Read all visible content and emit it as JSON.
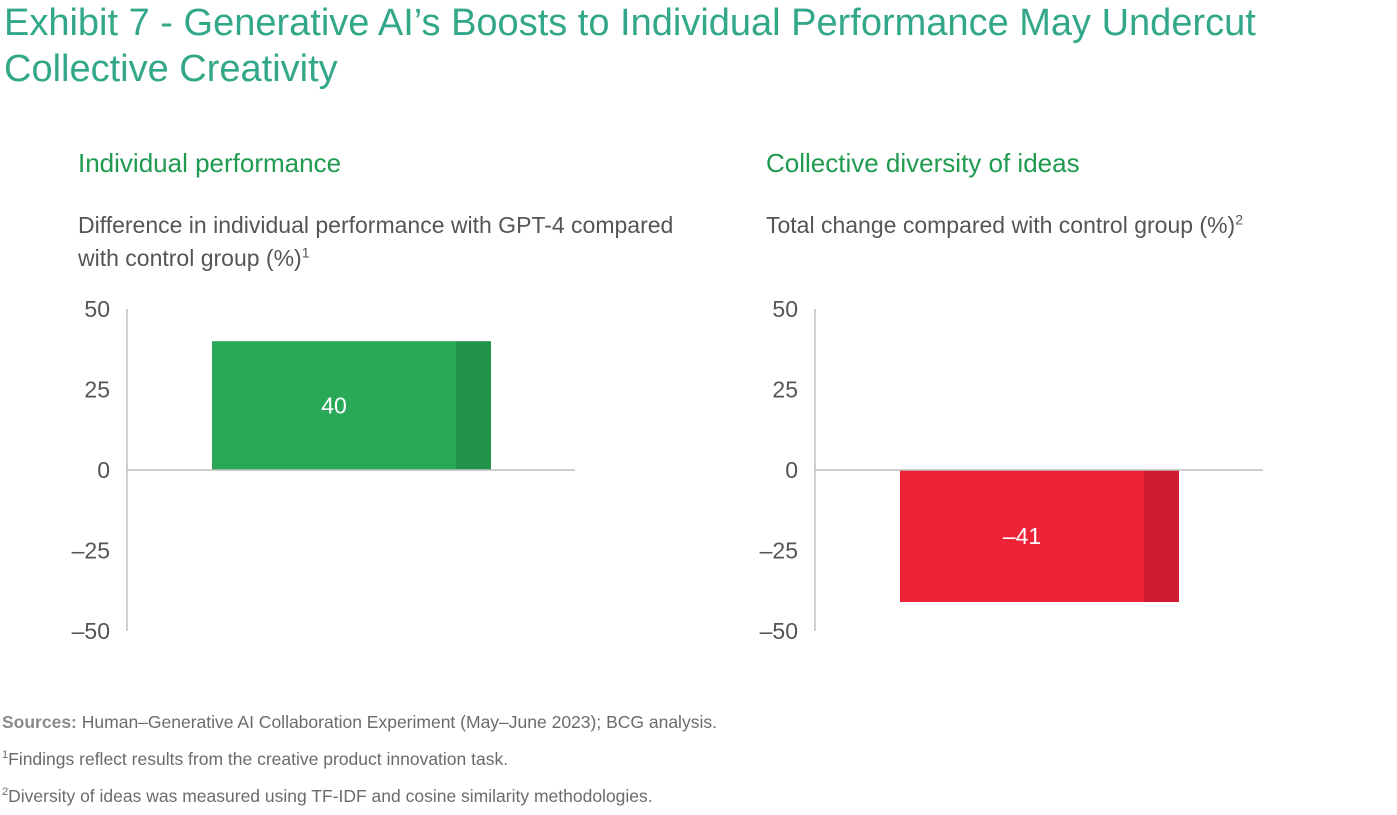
{
  "title": "Exhibit 7 - Generative AI’s Boosts to Individual Performance May Undercut Collective Creativity",
  "colors": {
    "title": "#33a888",
    "panel_title": "#1f9a4f",
    "green_bar": "#29a957",
    "green_bar_dark": "#22934b",
    "red_bar": "#ed2338",
    "red_bar_dark": "#d01c30",
    "axis": "#bfbfbf",
    "tick_text": "#555555"
  },
  "chart_data": [
    {
      "type": "bar",
      "title": "Individual performance",
      "subtitle": "Difference in individual performance with GPT-4 compared with control group (%)",
      "subtitle_footnote_mark": "1",
      "categories": [
        ""
      ],
      "values": [
        40
      ],
      "value_labels": [
        "40"
      ],
      "ylim": [
        -50,
        50
      ],
      "yticks": [
        50,
        25,
        0,
        -25,
        -50
      ],
      "ytick_labels": [
        "50",
        "25",
        "0",
        "–25",
        "–50"
      ],
      "xlabel": "",
      "ylabel": "",
      "color": "#29a957"
    },
    {
      "type": "bar",
      "title": "Collective diversity of ideas",
      "subtitle": "Total change compared with control group (%)",
      "subtitle_footnote_mark": "2",
      "categories": [
        ""
      ],
      "values": [
        -41
      ],
      "value_labels": [
        "–41"
      ],
      "ylim": [
        -50,
        50
      ],
      "yticks": [
        50,
        25,
        0,
        -25,
        -50
      ],
      "ytick_labels": [
        "50",
        "25",
        "0",
        "–25",
        "–50"
      ],
      "xlabel": "",
      "ylabel": "",
      "color": "#ed2338"
    }
  ],
  "footnotes": {
    "sources_label": "Sources:",
    "sources_text": "Human–Generative AI Collaboration Experiment (May–June 2023); BCG analysis.",
    "note1_mark": "1",
    "note1_text": "Findings reflect results from the creative product innovation task.",
    "note2_mark": "2",
    "note2_text": "Diversity of ideas was measured using TF-IDF and cosine similarity methodologies."
  }
}
